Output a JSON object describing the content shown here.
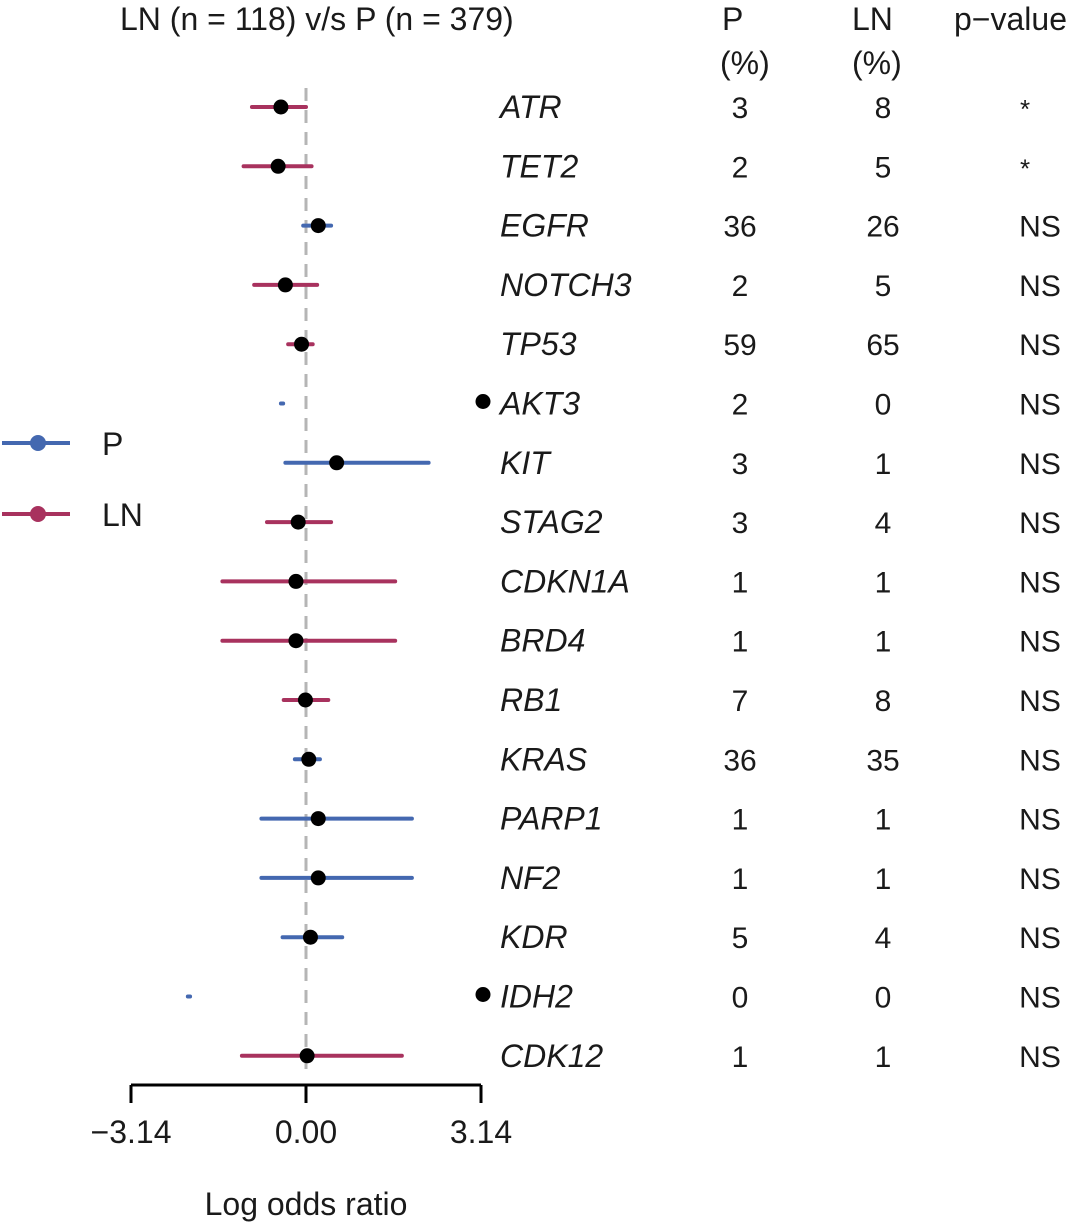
{
  "chart_data": {
    "type": "forest",
    "title": "LN (n = 118) v/s P (n = 379)",
    "xlabel": "Log odds ratio",
    "xlim": [
      -3.14,
      3.14
    ],
    "xticks": [
      -3.14,
      0.0,
      3.14
    ],
    "xtick_labels": [
      "−3.14",
      "0.00",
      "3.14"
    ],
    "reference_line": 0,
    "legend": {
      "placement": "left",
      "entries": [
        {
          "label": "P",
          "color": "#4468b0"
        },
        {
          "label": "LN",
          "color": "#a8325e"
        }
      ]
    },
    "columns": {
      "p_header": [
        "P",
        "(%)"
      ],
      "ln_header": [
        "LN",
        "(%)"
      ],
      "pvalue_header": "p−value"
    },
    "rows": [
      {
        "gene": "ATR",
        "est": -0.45,
        "lo": -0.97,
        "hi": 0.0,
        "series": "LN",
        "p_pct": "3",
        "ln_pct": "8",
        "pval": "*",
        "marker": false
      },
      {
        "gene": "TET2",
        "est": -0.5,
        "lo": -1.12,
        "hi": 0.1,
        "series": "LN",
        "p_pct": "2",
        "ln_pct": "5",
        "pval": "*",
        "marker": false
      },
      {
        "gene": "EGFR",
        "est": 0.22,
        "lo": -0.05,
        "hi": 0.45,
        "series": "P",
        "p_pct": "36",
        "ln_pct": "26",
        "pval": "NS",
        "marker": false
      },
      {
        "gene": "NOTCH3",
        "est": -0.37,
        "lo": -0.93,
        "hi": 0.2,
        "series": "LN",
        "p_pct": "2",
        "ln_pct": "5",
        "pval": "NS",
        "marker": false
      },
      {
        "gene": "TP53",
        "est": -0.08,
        "lo": -0.32,
        "hi": 0.12,
        "series": "LN",
        "p_pct": "59",
        "ln_pct": "65",
        "pval": "NS",
        "marker": false
      },
      {
        "gene": "AKT3",
        "est": -0.43,
        "lo": -0.45,
        "hi": -0.41,
        "series": "P",
        "p_pct": "2",
        "ln_pct": "0",
        "pval": "NS",
        "marker": true,
        "no_point": true
      },
      {
        "gene": "KIT",
        "est": 0.55,
        "lo": -0.37,
        "hi": 2.2,
        "series": "P",
        "p_pct": "3",
        "ln_pct": "1",
        "pval": "NS",
        "marker": false
      },
      {
        "gene": "STAG2",
        "est": -0.14,
        "lo": -0.7,
        "hi": 0.45,
        "series": "LN",
        "p_pct": "3",
        "ln_pct": "4",
        "pval": "NS",
        "marker": false
      },
      {
        "gene": "CDKN1A",
        "est": -0.18,
        "lo": -1.5,
        "hi": 1.6,
        "series": "LN",
        "p_pct": "1",
        "ln_pct": "1",
        "pval": "NS",
        "marker": false
      },
      {
        "gene": "BRD4",
        "est": -0.18,
        "lo": -1.5,
        "hi": 1.6,
        "series": "LN",
        "p_pct": "1",
        "ln_pct": "1",
        "pval": "NS",
        "marker": false
      },
      {
        "gene": "RB1",
        "est": -0.01,
        "lo": -0.4,
        "hi": 0.4,
        "series": "LN",
        "p_pct": "7",
        "ln_pct": "8",
        "pval": "NS",
        "marker": false
      },
      {
        "gene": "KRAS",
        "est": 0.05,
        "lo": -0.2,
        "hi": 0.25,
        "series": "P",
        "p_pct": "36",
        "ln_pct": "35",
        "pval": "NS",
        "marker": false
      },
      {
        "gene": "PARP1",
        "est": 0.22,
        "lo": -0.8,
        "hi": 1.9,
        "series": "P",
        "p_pct": "1",
        "ln_pct": "1",
        "pval": "NS",
        "marker": false
      },
      {
        "gene": "NF2",
        "est": 0.22,
        "lo": -0.8,
        "hi": 1.9,
        "series": "P",
        "p_pct": "1",
        "ln_pct": "1",
        "pval": "NS",
        "marker": false
      },
      {
        "gene": "KDR",
        "est": 0.08,
        "lo": -0.42,
        "hi": 0.65,
        "series": "P",
        "p_pct": "5",
        "ln_pct": "4",
        "pval": "NS",
        "marker": false
      },
      {
        "gene": "IDH2",
        "est": -2.1,
        "lo": -2.12,
        "hi": -2.08,
        "series": "P",
        "p_pct": "0",
        "ln_pct": "0",
        "pval": "NS",
        "marker": true,
        "no_point": true
      },
      {
        "gene": "CDK12",
        "est": 0.02,
        "lo": -1.15,
        "hi": 1.72,
        "series": "LN",
        "p_pct": "1",
        "ln_pct": "1",
        "pval": "NS",
        "marker": false
      }
    ]
  }
}
